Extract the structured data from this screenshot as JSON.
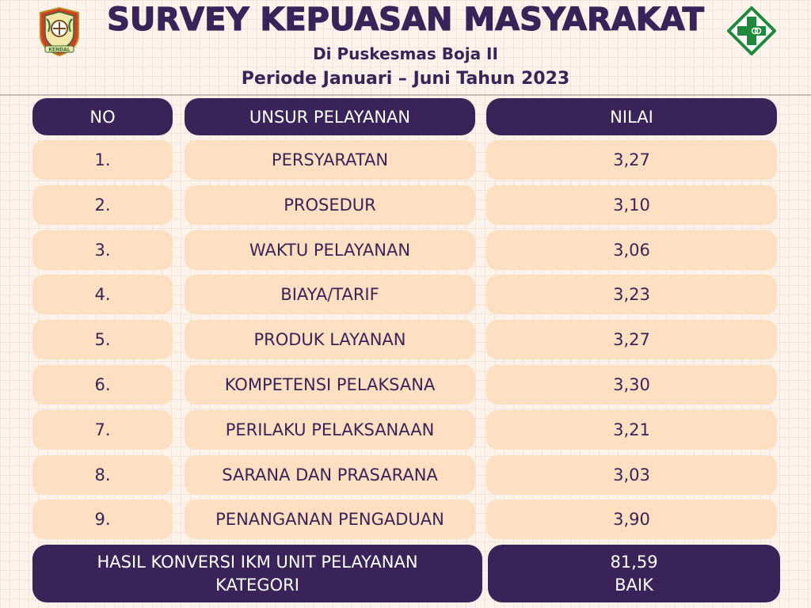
{
  "header": {
    "title": "SURVEY KEPUASAN MASYARAKAT",
    "subtitle": "Di Puskesmas Boja II",
    "period": "Periode Januari – Juni Tahun 2023",
    "left_logo_icon": "kendal-regency-emblem-icon",
    "left_logo_text": "KENDAL",
    "right_logo_icon": "puskesmas-cross-icon"
  },
  "table": {
    "headers": {
      "no": "NO",
      "unsur": "UNSUR PELAYANAN",
      "nilai": "NILAI"
    },
    "rows": [
      {
        "no": "1.",
        "unsur": "PERSYARATAN",
        "nilai": "3,27"
      },
      {
        "no": "2.",
        "unsur": "PROSEDUR",
        "nilai": "3,10"
      },
      {
        "no": "3.",
        "unsur": "WAKTU PELAYANAN",
        "nilai": "3,06"
      },
      {
        "no": "4.",
        "unsur": "BIAYA/TARIF",
        "nilai": "3,23"
      },
      {
        "no": "5.",
        "unsur": "PRODUK LAYANAN",
        "nilai": "3,27"
      },
      {
        "no": "6.",
        "unsur": "KOMPETENSI PELAKSANA",
        "nilai": "3,30"
      },
      {
        "no": "7.",
        "unsur": "PERILAKU PELAKSANAAN",
        "nilai": "3,21"
      },
      {
        "no": "8.",
        "unsur": "SARANA DAN PRASARANA",
        "nilai": "3,03"
      },
      {
        "no": "9.",
        "unsur": "PENANGANAN PENGADUAN",
        "nilai": "3,90"
      }
    ],
    "footer": {
      "label_line1": "HASIL KONVERSI IKM UNIT PELAYANAN",
      "label_line2": "KATEGORI",
      "value": "81,59",
      "category": "BAIK"
    }
  },
  "colors": {
    "primary": "#3a2358",
    "cell_fill": "#fde0c2",
    "background": "#fdf3ea",
    "logo_green": "#1f8a3b"
  }
}
